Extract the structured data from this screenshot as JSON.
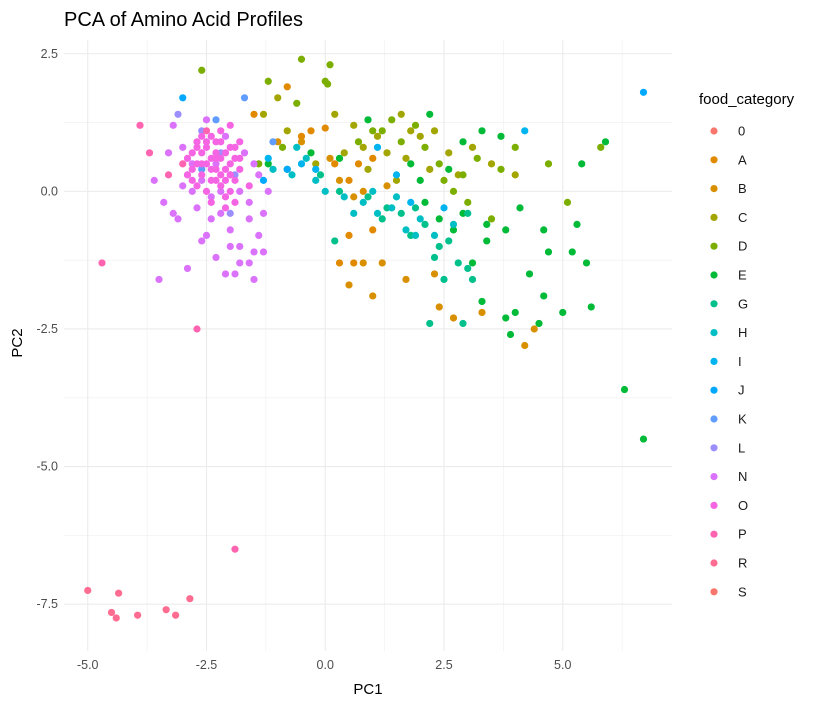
{
  "chart_data": {
    "type": "scatter",
    "title": "PCA of Amino Acid Profiles",
    "xlabel": "PC1",
    "ylabel": "PC2",
    "xlim": [
      -5.5,
      7.3
    ],
    "ylim": [
      -8.35,
      2.75
    ],
    "x_ticks": [
      -5.0,
      -2.5,
      0.0,
      2.5,
      5.0
    ],
    "x_tick_labels": [
      "-5.0",
      "-2.5",
      "0.0",
      "2.5",
      "5.0"
    ],
    "y_ticks": [
      2.5,
      0.0,
      -2.5,
      -5.0,
      -7.5
    ],
    "y_tick_labels": [
      "2.5",
      "0.0",
      "-2.5",
      "-5.0",
      "-7.5"
    ],
    "grid": true,
    "legend": {
      "title": "food_category",
      "position": "right"
    },
    "series": [
      {
        "name": "0",
        "color": "#F8766D",
        "points": []
      },
      {
        "name": "A",
        "color": "#E18A00",
        "points": [
          [
            -1.5,
            1.4
          ],
          [
            -0.8,
            1.9
          ],
          [
            -0.5,
            1.0
          ],
          [
            -0.3,
            1.1
          ],
          [
            0.0,
            1.15
          ],
          [
            0.2,
            0.5
          ],
          [
            0.5,
            0.2
          ],
          [
            0.7,
            0.5
          ],
          [
            1.0,
            0.6
          ],
          [
            0.5,
            -0.8
          ],
          [
            0.6,
            -1.3
          ],
          [
            0.3,
            -1.3
          ],
          [
            1.0,
            -0.7
          ]
        ]
      },
      {
        "name": "B",
        "color": "#D89000",
        "points": [
          [
            -1.0,
            0.9
          ],
          [
            -0.5,
            0.9
          ],
          [
            0.1,
            0.6
          ],
          [
            0.3,
            0.2
          ],
          [
            0.6,
            -0.1
          ],
          [
            0.8,
            0.0
          ],
          [
            1.3,
            0.1
          ],
          [
            0.8,
            -1.3
          ],
          [
            1.2,
            -1.3
          ],
          [
            0.5,
            -1.7
          ],
          [
            1.7,
            -1.6
          ],
          [
            1.0,
            -1.9
          ],
          [
            2.3,
            -1.5
          ],
          [
            2.4,
            -2.1
          ],
          [
            2.7,
            -2.3
          ],
          [
            3.3,
            -2.2
          ],
          [
            4.2,
            -2.8
          ],
          [
            4.4,
            -2.5
          ]
        ]
      },
      {
        "name": "C",
        "color": "#A3A500",
        "points": [
          [
            -1.3,
            1.4
          ],
          [
            -1.0,
            1.7
          ],
          [
            -0.8,
            1.1
          ],
          [
            0.2,
            1.4
          ],
          [
            0.6,
            1.2
          ],
          [
            0.8,
            0.8
          ],
          [
            1.1,
            1.0
          ],
          [
            1.3,
            0.7
          ],
          [
            1.6,
            1.4
          ],
          [
            1.8,
            1.1
          ],
          [
            2.0,
            1.0
          ],
          [
            2.3,
            1.1
          ],
          [
            2.6,
            0.7
          ],
          [
            2.8,
            0.3
          ],
          [
            3.1,
            0.8
          ],
          [
            1.7,
            0.6
          ],
          [
            0.9,
            0.4
          ],
          [
            1.5,
            0.2
          ],
          [
            2.2,
            0.4
          ],
          [
            0.4,
            0.7
          ],
          [
            -0.2,
            0.5
          ],
          [
            3.5,
            0.5
          ],
          [
            4.0,
            0.3
          ]
        ]
      },
      {
        "name": "D",
        "color": "#7CAE00",
        "points": [
          [
            -1.4,
            0.5
          ],
          [
            -0.9,
            0.8
          ],
          [
            -0.6,
            1.6
          ],
          [
            0.0,
            2.0
          ],
          [
            0.1,
            2.3
          ],
          [
            1.0,
            1.1
          ],
          [
            1.4,
            1.3
          ],
          [
            1.9,
            1.2
          ],
          [
            2.1,
            0.8
          ],
          [
            2.5,
            0.2
          ],
          [
            2.9,
            0.3
          ],
          [
            3.2,
            0.6
          ],
          [
            3.7,
            0.4
          ],
          [
            4.0,
            0.8
          ],
          [
            4.7,
            0.5
          ],
          [
            0.7,
            0.9
          ],
          [
            1.2,
            1.1
          ],
          [
            1.6,
            0.9
          ],
          [
            2.4,
            0.5
          ],
          [
            2.7,
            0.0
          ],
          [
            3.0,
            -0.2
          ],
          [
            3.5,
            -0.5
          ],
          [
            5.8,
            0.8
          ],
          [
            5.1,
            -0.2
          ],
          [
            -2.6,
            2.2
          ],
          [
            -0.5,
            2.4
          ],
          [
            -1.2,
            2.0
          ],
          [
            0.05,
            1.95
          ]
        ]
      },
      {
        "name": "E",
        "color": "#00BA38",
        "points": [
          [
            -1.2,
            0.5
          ],
          [
            -0.8,
            0.4
          ],
          [
            -0.3,
            0.7
          ],
          [
            0.3,
            0.6
          ],
          [
            0.9,
            1.3
          ],
          [
            1.8,
            0.5
          ],
          [
            2.2,
            1.4
          ],
          [
            2.6,
            0.4
          ],
          [
            2.9,
            -0.4
          ],
          [
            3.4,
            -0.6
          ],
          [
            3.8,
            -0.7
          ],
          [
            4.1,
            -0.3
          ],
          [
            4.6,
            -0.7
          ],
          [
            5.2,
            -1.1
          ],
          [
            5.5,
            -1.3
          ],
          [
            4.3,
            -1.5
          ],
          [
            4.6,
            -1.9
          ],
          [
            4.0,
            -2.2
          ],
          [
            3.8,
            -2.3
          ],
          [
            3.3,
            -2.0
          ],
          [
            5.0,
            -2.2
          ],
          [
            5.6,
            -2.1
          ],
          [
            4.5,
            -2.4
          ],
          [
            3.9,
            -2.6
          ],
          [
            6.3,
            -3.6
          ],
          [
            6.7,
            -4.5
          ],
          [
            3.4,
            -0.9
          ],
          [
            2.7,
            -0.7
          ],
          [
            2.0,
            0.2
          ],
          [
            5.3,
            -0.6
          ],
          [
            4.7,
            -1.1
          ],
          [
            5.4,
            0.5
          ],
          [
            5.9,
            0.9
          ],
          [
            3.7,
            1.0
          ],
          [
            3.3,
            1.1
          ],
          [
            2.9,
            0.9
          ],
          [
            2.4,
            -0.5
          ],
          [
            2.1,
            -0.2
          ],
          [
            3.1,
            -1.3
          ]
        ]
      },
      {
        "name": "G",
        "color": "#00C08B",
        "points": [
          [
            -0.1,
            0.3
          ],
          [
            0.3,
            0.0
          ],
          [
            0.9,
            -0.1
          ],
          [
            1.3,
            -0.3
          ],
          [
            1.6,
            -0.4
          ],
          [
            1.9,
            -0.3
          ],
          [
            2.1,
            -0.6
          ],
          [
            2.4,
            -1.0
          ],
          [
            2.8,
            -1.3
          ],
          [
            3.0,
            -1.4
          ],
          [
            2.3,
            -1.2
          ],
          [
            2.2,
            -2.4
          ],
          [
            3.0,
            -0.4
          ],
          [
            1.8,
            -0.8
          ],
          [
            2.6,
            -0.9
          ],
          [
            0.2,
            -0.9
          ],
          [
            2.5,
            -1.6
          ],
          [
            3.1,
            -1.6
          ],
          [
            2.9,
            -2.4
          ],
          [
            1.2,
            -0.5
          ]
        ]
      },
      {
        "name": "H",
        "color": "#00BFC4",
        "points": [
          [
            -1.1,
            0.4
          ],
          [
            -0.7,
            0.3
          ],
          [
            -0.4,
            0.6
          ],
          [
            0.0,
            0.0
          ],
          [
            0.4,
            -0.1
          ],
          [
            0.8,
            -0.2
          ],
          [
            1.1,
            -0.4
          ],
          [
            1.4,
            -0.3
          ],
          [
            1.7,
            -0.7
          ],
          [
            1.9,
            -0.8
          ],
          [
            2.3,
            -0.8
          ],
          [
            2.7,
            -0.6
          ],
          [
            -0.6,
            0.8
          ],
          [
            0.6,
            -0.4
          ],
          [
            1.0,
            0.0
          ],
          [
            2.0,
            -0.5
          ],
          [
            -0.2,
            0.2
          ],
          [
            1.5,
            -0.1
          ]
        ]
      },
      {
        "name": "I",
        "color": "#00B4F0",
        "points": [
          [
            -1.2,
            0.6
          ],
          [
            -0.5,
            0.5
          ],
          [
            -0.2,
            0.4
          ],
          [
            1.1,
            0.8
          ],
          [
            1.5,
            0.3
          ],
          [
            1.8,
            -0.2
          ],
          [
            2.5,
            -0.3
          ],
          [
            4.2,
            1.1
          ]
        ]
      },
      {
        "name": "J",
        "color": "#00A9FF",
        "points": [
          [
            -3.0,
            1.7
          ],
          [
            -1.3,
            0.2
          ],
          [
            -0.8,
            0.4
          ],
          [
            6.7,
            1.8
          ]
        ]
      },
      {
        "name": "K",
        "color": "#619CFF",
        "points": [
          [
            -1.7,
            1.7
          ],
          [
            -1.1,
            0.9
          ],
          [
            -2.6,
            0.4
          ],
          [
            -2.3,
            1.3
          ]
        ]
      },
      {
        "name": "L",
        "color": "#9B8EFF",
        "points": [
          [
            -3.1,
            1.4
          ],
          [
            -2.6,
            1.1
          ],
          [
            -2.2,
            0.7
          ],
          [
            -1.9,
            0.3
          ],
          [
            -2.0,
            -0.4
          ]
        ]
      },
      {
        "name": "N",
        "color": "#DB72FB",
        "points": [
          [
            -3.2,
            1.2
          ],
          [
            -3.0,
            0.8
          ],
          [
            -2.8,
            0.5
          ],
          [
            -2.6,
            0.2
          ],
          [
            -2.4,
            -0.1
          ],
          [
            -2.2,
            -0.4
          ],
          [
            -2.0,
            -0.7
          ],
          [
            -1.8,
            -1.0
          ],
          [
            -1.6,
            -1.3
          ],
          [
            -1.5,
            -1.6
          ],
          [
            -3.5,
            -1.6
          ],
          [
            -3.4,
            -0.2
          ],
          [
            -3.1,
            -0.5
          ],
          [
            -2.9,
            -1.4
          ],
          [
            -2.5,
            -0.8
          ],
          [
            -2.3,
            -1.2
          ],
          [
            -2.1,
            -1.5
          ],
          [
            -1.9,
            -1.5
          ],
          [
            -1.6,
            -0.5
          ],
          [
            -1.4,
            -0.8
          ],
          [
            -1.3,
            -1.1
          ],
          [
            -1.2,
            0.0
          ],
          [
            -1.4,
            0.3
          ],
          [
            -1.7,
            0.7
          ],
          [
            -2.1,
            1.0
          ],
          [
            -2.5,
            1.3
          ],
          [
            -3.3,
            0.7
          ],
          [
            -3.6,
            0.2
          ],
          [
            -3.0,
            0.1
          ],
          [
            -2.7,
            -0.3
          ],
          [
            -2.6,
            -0.9
          ],
          [
            -2.4,
            -0.5
          ],
          [
            -2.2,
            0.0
          ],
          [
            -2.0,
            0.3
          ],
          [
            -1.8,
            0.0
          ],
          [
            -1.6,
            -0.2
          ],
          [
            -1.5,
            0.5
          ],
          [
            -1.3,
            -0.4
          ],
          [
            -2.8,
            0.0
          ],
          [
            -3.2,
            -0.4
          ],
          [
            -2.9,
            0.3
          ],
          [
            -2.3,
            0.5
          ],
          [
            -2.0,
            -1.0
          ],
          [
            -1.8,
            -1.3
          ],
          [
            -1.5,
            -1.1
          ]
        ]
      },
      {
        "name": "O",
        "color": "#F564E3",
        "points": [
          [
            -2.9,
            0.6
          ],
          [
            -2.7,
            0.9
          ],
          [
            -2.5,
            0.8
          ],
          [
            -2.3,
            0.6
          ],
          [
            -2.1,
            0.4
          ],
          [
            -1.9,
            0.2
          ],
          [
            -2.6,
            0.3
          ],
          [
            -2.4,
            0.2
          ],
          [
            -2.2,
            0.1
          ],
          [
            -2.0,
            0.0
          ],
          [
            -2.8,
            0.2
          ],
          [
            -2.5,
            0.5
          ],
          [
            -2.3,
            0.9
          ],
          [
            -2.1,
            0.7
          ],
          [
            -1.9,
            0.6
          ],
          [
            -2.7,
            0.5
          ],
          [
            -2.4,
            0.4
          ],
          [
            -2.2,
            0.3
          ],
          [
            -2.0,
            0.5
          ],
          [
            -1.8,
            0.4
          ],
          [
            -2.6,
            0.7
          ],
          [
            -2.3,
            0.2
          ],
          [
            -2.1,
            -0.1
          ],
          [
            -1.9,
            -0.2
          ],
          [
            -2.5,
            0.0
          ],
          [
            -2.2,
            0.6
          ],
          [
            -2.0,
            0.8
          ],
          [
            -2.4,
            1.0
          ],
          [
            -2.8,
            0.7
          ],
          [
            -2.6,
            1.0
          ],
          [
            -2.2,
            1.1
          ],
          [
            -2.0,
            1.2
          ],
          [
            -1.8,
            0.9
          ],
          [
            -1.6,
            0.1
          ],
          [
            -2.9,
            0.3
          ],
          [
            -2.7,
            0.1
          ],
          [
            -2.4,
            -0.2
          ],
          [
            -2.1,
            -0.3
          ],
          [
            -2.3,
            0.4
          ],
          [
            -2.5,
            0.9
          ],
          [
            -2.7,
            0.8
          ],
          [
            -1.9,
            0.8
          ],
          [
            -2.1,
            0.2
          ],
          [
            -2.6,
            0.5
          ],
          [
            -2.3,
            0.7
          ],
          [
            -2.0,
            0.3
          ],
          [
            -1.8,
            0.6
          ],
          [
            -2.4,
            0.6
          ],
          [
            -2.2,
            0.9
          ],
          [
            -2.8,
            0.4
          ]
        ]
      },
      {
        "name": "P",
        "color": "#FF64B0",
        "points": [
          [
            -3.9,
            1.2
          ],
          [
            -2.7,
            -2.5
          ],
          [
            -1.9,
            -6.5
          ],
          [
            -4.7,
            -1.3
          ],
          [
            -3.7,
            0.7
          ],
          [
            -3.3,
            0.3
          ],
          [
            -3.0,
            0.5
          ],
          [
            -2.5,
            1.1
          ]
        ]
      },
      {
        "name": "R",
        "color": "#FF6C91",
        "points": [
          [
            -5.0,
            -7.25
          ],
          [
            -4.5,
            -7.65
          ],
          [
            -4.4,
            -7.75
          ],
          [
            -4.35,
            -7.3
          ],
          [
            -3.95,
            -7.7
          ],
          [
            -3.35,
            -7.6
          ],
          [
            -3.15,
            -7.7
          ],
          [
            -2.85,
            -7.4
          ]
        ]
      },
      {
        "name": "S",
        "color": "#F8766D",
        "points": []
      }
    ]
  }
}
